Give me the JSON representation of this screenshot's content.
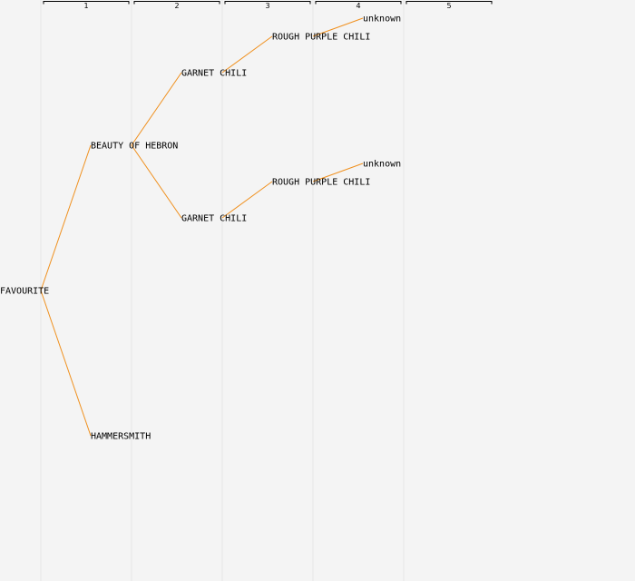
{
  "generations": [
    {
      "id": "g1",
      "label": "1"
    },
    {
      "id": "g2",
      "label": "2"
    },
    {
      "id": "g3",
      "label": "3"
    },
    {
      "id": "g4",
      "label": "4"
    },
    {
      "id": "g5",
      "label": "5"
    }
  ],
  "colors": {
    "background": "#f4f4f4",
    "edge": "#f0901e",
    "column_divider": "#e6e6e6",
    "text": "#000000"
  },
  "tree": {
    "nodes": [
      {
        "id": "n-favourite",
        "name": "FAVOURITE",
        "generation": 1
      },
      {
        "id": "n-beauty-of-hebron",
        "name": "BEAUTY OF HEBRON",
        "generation": 2
      },
      {
        "id": "n-hammersmith",
        "name": "HAMMERSMITH",
        "generation": 2
      },
      {
        "id": "n-garnet-chili-a",
        "name": "GARNET CHILI",
        "generation": 3
      },
      {
        "id": "n-garnet-chili-b",
        "name": "GARNET CHILI",
        "generation": 3
      },
      {
        "id": "n-rough-purple-chili-a",
        "name": "ROUGH PURPLE CHILI",
        "generation": 4
      },
      {
        "id": "n-rough-purple-chili-b",
        "name": "ROUGH PURPLE CHILI",
        "generation": 4
      },
      {
        "id": "n-unknown-a",
        "name": "unknown",
        "generation": 5
      },
      {
        "id": "n-unknown-b",
        "name": "unknown",
        "generation": 5
      }
    ],
    "edges": [
      {
        "from": "n-favourite",
        "to": "n-beauty-of-hebron"
      },
      {
        "from": "n-favourite",
        "to": "n-hammersmith"
      },
      {
        "from": "n-beauty-of-hebron",
        "to": "n-garnet-chili-a"
      },
      {
        "from": "n-beauty-of-hebron",
        "to": "n-garnet-chili-b"
      },
      {
        "from": "n-garnet-chili-a",
        "to": "n-rough-purple-chili-a"
      },
      {
        "from": "n-garnet-chili-b",
        "to": "n-rough-purple-chili-b"
      },
      {
        "from": "n-rough-purple-chili-a",
        "to": "n-unknown-a"
      },
      {
        "from": "n-rough-purple-chili-b",
        "to": "n-unknown-b"
      }
    ]
  }
}
